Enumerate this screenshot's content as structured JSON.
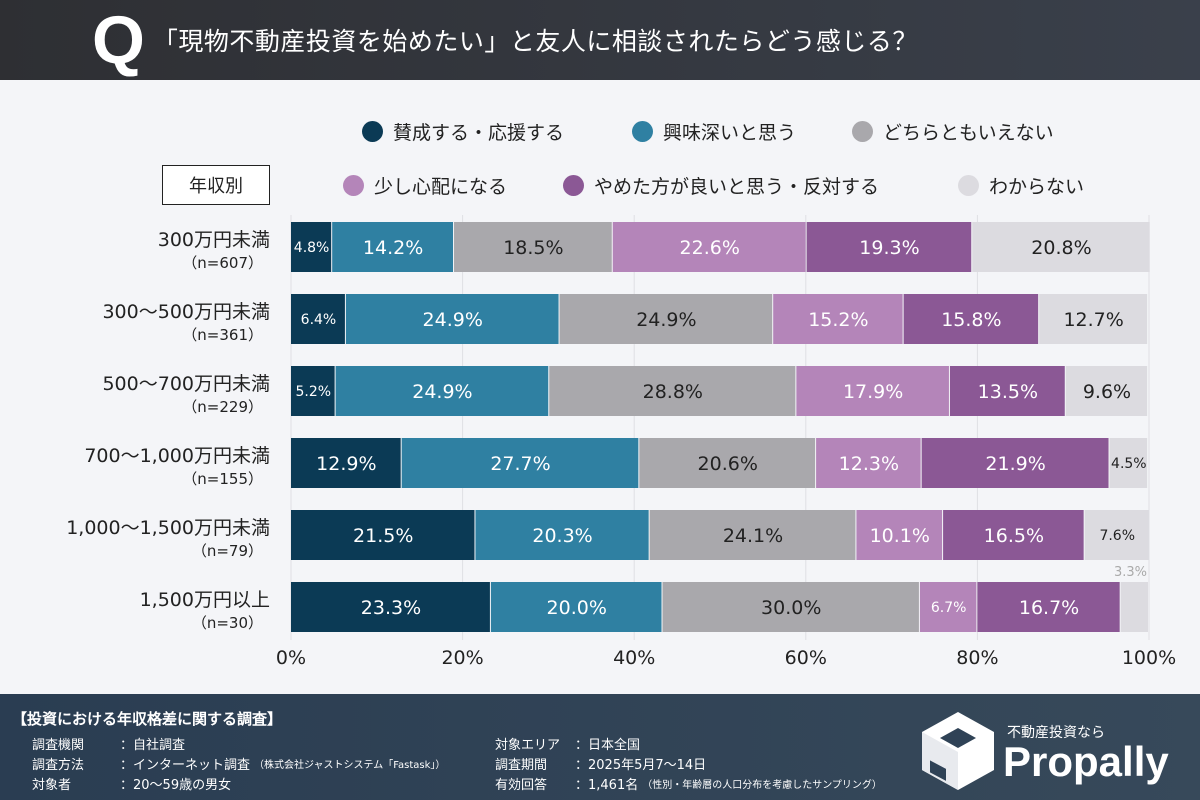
{
  "header": {
    "q_mark": "Q",
    "title": "「現物不動産投資を始めたい」と友人に相談されたらどう感じる？"
  },
  "group_label": "年収別",
  "chart_data": {
    "type": "bar",
    "orientation": "horizontal",
    "stacked": true,
    "title": "「現物不動産投資を始めたい」と友人に相談されたらどう感じる？",
    "categories": [
      {
        "label": "300万円未満",
        "n": "（n=607）"
      },
      {
        "label": "300〜500万円未満",
        "n": "（n=361）"
      },
      {
        "label": "500〜700万円未満",
        "n": "（n=229）"
      },
      {
        "label": "700〜1,000万円未満",
        "n": "（n=155）"
      },
      {
        "label": "1,000〜1,500万円未満",
        "n": "（n=79）"
      },
      {
        "label": "1,500万円以上",
        "n": "（n=30）"
      }
    ],
    "series": [
      {
        "name": "賛成する・応援する",
        "color": "#0b3a55",
        "values": [
          4.8,
          6.4,
          5.2,
          12.9,
          21.5,
          23.3
        ]
      },
      {
        "name": "興味深いと思う",
        "color": "#2f80a2",
        "values": [
          14.2,
          24.9,
          24.9,
          27.7,
          20.3,
          20.0
        ]
      },
      {
        "name": "どちらともいえない",
        "color": "#a9a8ac",
        "values": [
          18.5,
          24.9,
          28.8,
          20.6,
          24.1,
          30.0
        ]
      },
      {
        "name": "少し心配になる",
        "color": "#b485b9",
        "values": [
          22.6,
          15.2,
          17.9,
          12.3,
          10.1,
          6.7
        ]
      },
      {
        "name": "やめた方が良いと思う・反対する",
        "color": "#8b5895",
        "values": [
          19.3,
          15.8,
          13.5,
          21.9,
          16.5,
          16.7
        ]
      },
      {
        "name": "わからない",
        "color": "#dcdbe0",
        "values": [
          20.8,
          12.7,
          9.6,
          4.5,
          7.6,
          3.3
        ]
      }
    ],
    "xlim": [
      0,
      100
    ],
    "xticks": [
      "0%",
      "20%",
      "40%",
      "60%",
      "80%",
      "100%"
    ],
    "grid": true,
    "legend": "top"
  },
  "footer": {
    "title": "【投資における年収格差に関する調査】",
    "left": [
      {
        "k": "調査機関",
        "v": "：自社調査",
        "note": ""
      },
      {
        "k": "調査方法",
        "v": "：インターネット調査",
        "note": "（株式会社ジャストシステム「Fastask」）"
      },
      {
        "k": "対象者",
        "v": "：20〜59歳の男女",
        "note": ""
      }
    ],
    "right": [
      {
        "k": "対象エリア",
        "v": "：日本全国",
        "note": ""
      },
      {
        "k": "調査期間",
        "v": "：2025年5月7〜14日",
        "note": ""
      },
      {
        "k": "有効回答",
        "v": "：1,461名",
        "note": "（性別・年齢層の人口分布を考慮したサンプリング）"
      }
    ],
    "brand_tagline": "不動産投資なら",
    "brand_name": "Propally"
  }
}
